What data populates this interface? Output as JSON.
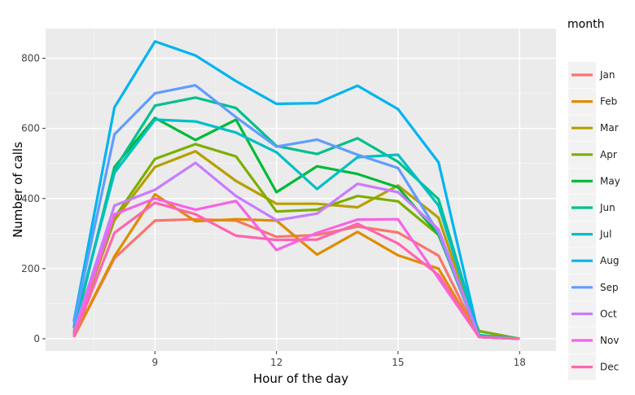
{
  "chart_data": {
    "type": "line",
    "xlabel": "Hour of the day",
    "ylabel": "Number of calls",
    "xlim": [
      6.3,
      18.9
    ],
    "ylim": [
      -35,
      885
    ],
    "x_ticks": [
      9,
      12,
      15,
      18
    ],
    "y_ticks": [
      0,
      200,
      400,
      600,
      800
    ],
    "grid": true,
    "legend_title": "month",
    "legend_position": "right",
    "series": [
      {
        "name": "Jan",
        "color": "#F8766D",
        "x": [
          7,
          8,
          9,
          10,
          11,
          12,
          13,
          14,
          15,
          16,
          17,
          18
        ],
        "values": [
          5,
          230,
          337,
          341,
          337,
          291,
          296,
          320,
          303,
          237,
          5,
          0
        ]
      },
      {
        "name": "Feb",
        "color": "#DE8C00",
        "x": [
          7,
          8,
          9,
          10,
          11,
          12,
          13,
          14,
          15,
          16,
          17,
          18
        ],
        "values": [
          5,
          235,
          412,
          335,
          341,
          337,
          240,
          305,
          238,
          200,
          5,
          0
        ]
      },
      {
        "name": "Mar",
        "color": "#B79F00",
        "x": [
          7,
          8,
          9,
          10,
          11,
          12,
          13,
          14,
          15,
          16,
          17,
          18
        ],
        "values": [
          10,
          338,
          490,
          535,
          450,
          385,
          385,
          375,
          437,
          345,
          5,
          0
        ]
      },
      {
        "name": "Apr",
        "color": "#7CAE00",
        "x": [
          7,
          8,
          9,
          10,
          11,
          12,
          13,
          14,
          15,
          16,
          17,
          18
        ],
        "values": [
          15,
          345,
          513,
          555,
          520,
          363,
          368,
          407,
          392,
          296,
          22,
          0
        ]
      },
      {
        "name": "May",
        "color": "#00BA38",
        "x": [
          7,
          8,
          9,
          10,
          11,
          12,
          13,
          14,
          15,
          16,
          17,
          18
        ],
        "values": [
          20,
          490,
          630,
          567,
          625,
          418,
          492,
          470,
          432,
          297,
          5,
          0
        ]
      },
      {
        "name": "Jun",
        "color": "#00C08B",
        "x": [
          7,
          8,
          9,
          10,
          11,
          12,
          13,
          14,
          15,
          16,
          17,
          18
        ],
        "values": [
          30,
          483,
          665,
          688,
          658,
          550,
          527,
          572,
          505,
          398,
          10,
          0
        ]
      },
      {
        "name": "Jul",
        "color": "#00BFC4",
        "x": [
          7,
          8,
          9,
          10,
          11,
          12,
          13,
          14,
          15,
          16,
          17,
          18
        ],
        "values": [
          35,
          473,
          625,
          620,
          588,
          532,
          427,
          518,
          525,
          380,
          10,
          0
        ]
      },
      {
        "name": "Aug",
        "color": "#00B4F0",
        "x": [
          7,
          8,
          9,
          10,
          11,
          12,
          13,
          14,
          15,
          16,
          17,
          18
        ],
        "values": [
          50,
          660,
          848,
          808,
          735,
          670,
          672,
          722,
          655,
          503,
          5,
          0
        ]
      },
      {
        "name": "Sep",
        "color": "#619CFF",
        "x": [
          7,
          8,
          9,
          10,
          11,
          12,
          13,
          14,
          15,
          16,
          17,
          18
        ],
        "values": [
          45,
          583,
          700,
          723,
          632,
          548,
          568,
          525,
          487,
          302,
          5,
          0
        ]
      },
      {
        "name": "Oct",
        "color": "#C77CFF",
        "x": [
          7,
          8,
          9,
          10,
          11,
          12,
          13,
          14,
          15,
          16,
          17,
          18
        ],
        "values": [
          20,
          380,
          425,
          502,
          407,
          338,
          357,
          442,
          418,
          312,
          5,
          0
        ]
      },
      {
        "name": "Nov",
        "color": "#F564E3",
        "x": [
          7,
          8,
          9,
          10,
          11,
          12,
          13,
          14,
          15,
          16,
          17,
          18
        ],
        "values": [
          10,
          355,
          400,
          368,
          393,
          253,
          302,
          340,
          341,
          172,
          5,
          0
        ]
      },
      {
        "name": "Dec",
        "color": "#FF64B0",
        "x": [
          7,
          8,
          9,
          10,
          11,
          12,
          13,
          14,
          15,
          16,
          17,
          18
        ],
        "values": [
          5,
          302,
          388,
          355,
          294,
          282,
          283,
          328,
          272,
          182,
          5,
          0
        ]
      }
    ]
  }
}
